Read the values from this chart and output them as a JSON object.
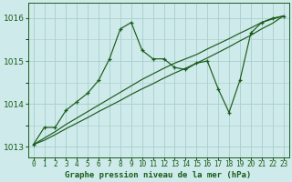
{
  "title": "Graphe pression niveau de la mer (hPa)",
  "bg_color": "#ceeaea",
  "grid_color": "#aacece",
  "line_color": "#1a5c1a",
  "x_labels": [
    "0",
    "1",
    "2",
    "3",
    "4",
    "5",
    "6",
    "7",
    "8",
    "9",
    "10",
    "11",
    "12",
    "13",
    "14",
    "15",
    "16",
    "17",
    "18",
    "19",
    "20",
    "21",
    "22",
    "23"
  ],
  "series1": [
    1013.05,
    1013.45,
    1013.45,
    1013.85,
    1014.05,
    1014.25,
    1014.55,
    1015.05,
    1015.75,
    1015.9,
    1015.25,
    1015.05,
    1015.05,
    1014.85,
    1014.8,
    1014.95,
    1015.0,
    1014.35,
    1013.8,
    1014.55,
    1015.65,
    1015.9,
    1016.0,
    1016.05
  ],
  "series2": [
    1013.05,
    1013.2,
    1013.35,
    1013.52,
    1013.67,
    1013.82,
    1013.97,
    1014.12,
    1014.27,
    1014.42,
    1014.57,
    1014.7,
    1014.83,
    1014.95,
    1015.05,
    1015.15,
    1015.28,
    1015.4,
    1015.52,
    1015.65,
    1015.77,
    1015.9,
    1015.98,
    1016.05
  ],
  "series3": [
    1013.05,
    1013.15,
    1013.28,
    1013.42,
    1013.55,
    1013.68,
    1013.82,
    1013.95,
    1014.08,
    1014.22,
    1014.35,
    1014.47,
    1014.6,
    1014.72,
    1014.83,
    1014.95,
    1015.07,
    1015.2,
    1015.33,
    1015.47,
    1015.6,
    1015.75,
    1015.88,
    1016.05
  ],
  "ylim": [
    1012.75,
    1016.35
  ],
  "yticks": [
    1013,
    1014,
    1015,
    1016
  ],
  "ylabel_fontsize": 6.5,
  "xlabel_fontsize": 5.5,
  "title_fontsize": 6.5
}
